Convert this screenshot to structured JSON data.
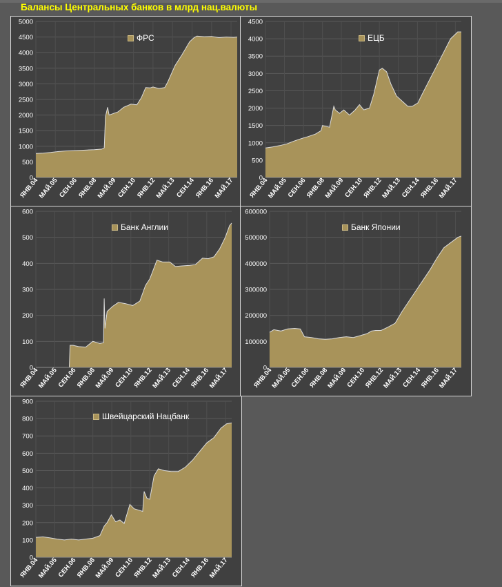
{
  "page": {
    "title": "Балансы Центральных банков в млрд нац.валюты"
  },
  "colors": {
    "background": "#595959",
    "panel": "#404040",
    "fill": "#a8935a",
    "line": "#d8d8d8",
    "text": "#ffffff",
    "title": "#ffff00",
    "grid": "#595959"
  },
  "chart_data": [
    {
      "type": "area",
      "legend": "ФРС",
      "ylim": [
        0,
        5000
      ],
      "yticks": [
        "0",
        "500",
        "1000",
        "1500",
        "2000",
        "2500",
        "3000",
        "3500",
        "4000",
        "4500",
        "5000"
      ],
      "xticks": [
        "ЯНВ.04",
        "МАЙ.05",
        "СЕН.06",
        "ЯНВ.08",
        "МАЙ.09",
        "СЕН.10",
        "ЯНВ.12",
        "МАЙ.13",
        "СЕН.14",
        "ЯНВ.16",
        "МАЙ.17"
      ],
      "x": [
        2004.0,
        2004.5,
        2005.0,
        2005.5,
        2006.0,
        2006.5,
        2007.0,
        2007.5,
        2008.0,
        2008.5,
        2008.67,
        2008.75,
        2008.9,
        2009.0,
        2009.3,
        2009.6,
        2010.0,
        2010.5,
        2010.9,
        2011.2,
        2011.5,
        2011.8,
        2012.0,
        2012.4,
        2012.8,
        2013.0,
        2013.5,
        2014.0,
        2014.5,
        2014.8,
        2015.0,
        2015.5,
        2016.0,
        2016.5,
        2017.0,
        2017.5,
        2017.75
      ],
      "values": [
        770,
        780,
        800,
        830,
        850,
        860,
        870,
        880,
        890,
        910,
        950,
        1950,
        2250,
        2000,
        2050,
        2100,
        2250,
        2350,
        2330,
        2550,
        2880,
        2870,
        2900,
        2850,
        2880,
        3050,
        3580,
        3950,
        4350,
        4480,
        4530,
        4510,
        4520,
        4480,
        4500,
        4490,
        4500
      ]
    },
    {
      "type": "area",
      "legend": "ЕЦБ",
      "ylim": [
        0,
        4500
      ],
      "yticks": [
        "0",
        "500",
        "1000",
        "1500",
        "2000",
        "2500",
        "3000",
        "3500",
        "4000",
        "4500"
      ],
      "xticks": [
        "ЯНВ.04",
        "МАЙ.05",
        "СЕН.06",
        "ЯНВ.08",
        "МАЙ.09",
        "СЕН.10",
        "ЯНВ.12",
        "МАЙ.13",
        "СЕН.14",
        "ЯНВ.16",
        "МАЙ.17"
      ],
      "x": [
        2004.0,
        2004.5,
        2005.0,
        2005.5,
        2006.0,
        2006.5,
        2007.0,
        2007.5,
        2007.9,
        2008.0,
        2008.5,
        2008.8,
        2008.9,
        2009.2,
        2009.5,
        2009.9,
        2010.3,
        2010.6,
        2010.9,
        2011.3,
        2011.6,
        2011.8,
        2012.0,
        2012.2,
        2012.5,
        2012.8,
        2013.2,
        2013.6,
        2014.0,
        2014.3,
        2014.7,
        2015.0,
        2015.5,
        2016.0,
        2016.5,
        2017.0,
        2017.5,
        2017.75
      ],
      "values": [
        850,
        880,
        920,
        970,
        1050,
        1120,
        1180,
        1250,
        1350,
        1500,
        1450,
        2050,
        1950,
        1850,
        1950,
        1800,
        1950,
        2100,
        1950,
        2000,
        2400,
        2750,
        3100,
        3150,
        3050,
        2700,
        2350,
        2200,
        2050,
        2050,
        2150,
        2400,
        2800,
        3200,
        3600,
        4000,
        4200,
        4200
      ]
    },
    {
      "type": "area",
      "legend": "Банк Англии",
      "ylim": [
        0,
        600
      ],
      "yticks": [
        "0",
        "100",
        "200",
        "300",
        "400",
        "500",
        "600"
      ],
      "xticks": [
        "ЯНВ.04",
        "МАЙ.05",
        "СЕН.06",
        "ЯНВ.08",
        "МАЙ.09",
        "СЕН.10",
        "ЯНВ.12",
        "МАЙ.13",
        "СЕН.14",
        "ЯНВ.16",
        "МАЙ.17"
      ],
      "x": [
        2004.0,
        2006.35,
        2006.4,
        2006.6,
        2007.0,
        2007.5,
        2008.0,
        2008.5,
        2008.75,
        2008.8,
        2008.85,
        2009.0,
        2009.4,
        2009.8,
        2010.3,
        2010.8,
        2011.3,
        2011.7,
        2012.0,
        2012.5,
        2012.9,
        2013.4,
        2013.8,
        2014.2,
        2014.8,
        2015.2,
        2015.7,
        2016.1,
        2016.5,
        2016.9,
        2017.3,
        2017.6,
        2017.75
      ],
      "values": [
        0,
        0,
        85,
        85,
        80,
        78,
        100,
        92,
        95,
        265,
        150,
        215,
        235,
        250,
        245,
        238,
        255,
        315,
        340,
        412,
        405,
        405,
        388,
        390,
        392,
        395,
        420,
        418,
        425,
        455,
        500,
        545,
        555
      ]
    },
    {
      "type": "area",
      "legend": "Банк Японии",
      "ylim": [
        0,
        600000
      ],
      "yticks": [
        "0",
        "100000",
        "200000",
        "300000",
        "400000",
        "500000",
        "600000"
      ],
      "xticks": [
        "ЯНВ.04",
        "МАЙ.05",
        "СЕН.06",
        "ЯНВ.08",
        "МАЙ.09",
        "СЕН.10",
        "ЯНВ.12",
        "МАЙ.13",
        "СЕН.14",
        "ЯНВ.16",
        "МАЙ.17"
      ],
      "x": [
        2004.0,
        2004.3,
        2004.8,
        2005.3,
        2005.8,
        2006.2,
        2006.5,
        2007.0,
        2007.5,
        2008.0,
        2008.5,
        2009.0,
        2009.5,
        2010.0,
        2010.5,
        2011.0,
        2011.3,
        2011.6,
        2012.0,
        2012.5,
        2013.0,
        2013.5,
        2014.0,
        2014.5,
        2015.0,
        2015.5,
        2016.0,
        2016.5,
        2017.0,
        2017.5,
        2017.75
      ],
      "values": [
        135000,
        145000,
        140000,
        148000,
        150000,
        148000,
        118000,
        115000,
        110000,
        108000,
        110000,
        115000,
        118000,
        115000,
        122000,
        130000,
        140000,
        142000,
        142000,
        155000,
        170000,
        215000,
        255000,
        295000,
        335000,
        375000,
        420000,
        460000,
        480000,
        500000,
        505000
      ]
    },
    {
      "type": "area",
      "legend": "Швейцарский Нацбанк",
      "ylim": [
        0,
        900
      ],
      "yticks": [
        "0",
        "100",
        "200",
        "300",
        "400",
        "500",
        "600",
        "700",
        "800",
        "900"
      ],
      "xticks": [
        "ЯНВ.04",
        "МАЙ.05",
        "СЕН.06",
        "ЯНВ.08",
        "МАЙ.09",
        "СЕН.10",
        "ЯНВ.12",
        "МАЙ.13",
        "СЕН.14",
        "ЯНВ.16",
        "МАЙ.17"
      ],
      "x": [
        2004.0,
        2004.5,
        2005.0,
        2005.5,
        2006.0,
        2006.5,
        2007.0,
        2007.5,
        2008.0,
        2008.5,
        2008.8,
        2009.0,
        2009.3,
        2009.6,
        2009.9,
        2010.2,
        2010.6,
        2010.9,
        2011.3,
        2011.5,
        2011.6,
        2011.8,
        2012.0,
        2012.3,
        2012.6,
        2013.0,
        2013.5,
        2014.0,
        2014.5,
        2015.0,
        2015.5,
        2016.0,
        2016.5,
        2017.0,
        2017.4,
        2017.75
      ],
      "values": [
        115,
        118,
        112,
        105,
        100,
        105,
        100,
        105,
        110,
        125,
        180,
        200,
        245,
        205,
        215,
        195,
        305,
        280,
        270,
        265,
        380,
        340,
        335,
        470,
        510,
        500,
        495,
        495,
        520,
        560,
        610,
        660,
        690,
        745,
        770,
        775
      ]
    }
  ]
}
